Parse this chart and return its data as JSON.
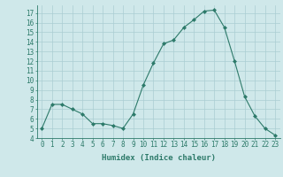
{
  "x": [
    0,
    1,
    2,
    3,
    4,
    5,
    6,
    7,
    8,
    9,
    10,
    11,
    12,
    13,
    14,
    15,
    16,
    17,
    18,
    19,
    20,
    21,
    22,
    23
  ],
  "y": [
    5.0,
    7.5,
    7.5,
    7.0,
    6.5,
    5.5,
    5.5,
    5.3,
    5.0,
    6.5,
    9.5,
    11.8,
    13.8,
    14.2,
    15.5,
    16.3,
    17.2,
    17.3,
    15.5,
    12.0,
    8.3,
    6.3,
    5.0,
    4.3
  ],
  "line_color": "#2d7a6a",
  "marker": "D",
  "marker_size": 2.0,
  "bg_color": "#cfe8ea",
  "grid_color": "#aacdd2",
  "xlabel": "Humidex (Indice chaleur)",
  "xlim": [
    -0.5,
    23.5
  ],
  "ylim": [
    4,
    17.8
  ],
  "yticks": [
    4,
    5,
    6,
    7,
    8,
    9,
    10,
    11,
    12,
    13,
    14,
    15,
    16,
    17
  ],
  "xticks": [
    0,
    1,
    2,
    3,
    4,
    5,
    6,
    7,
    8,
    9,
    10,
    11,
    12,
    13,
    14,
    15,
    16,
    17,
    18,
    19,
    20,
    21,
    22,
    23
  ],
  "tick_color": "#2d7a6a",
  "label_fontsize": 5.5,
  "xlabel_fontsize": 6.5
}
